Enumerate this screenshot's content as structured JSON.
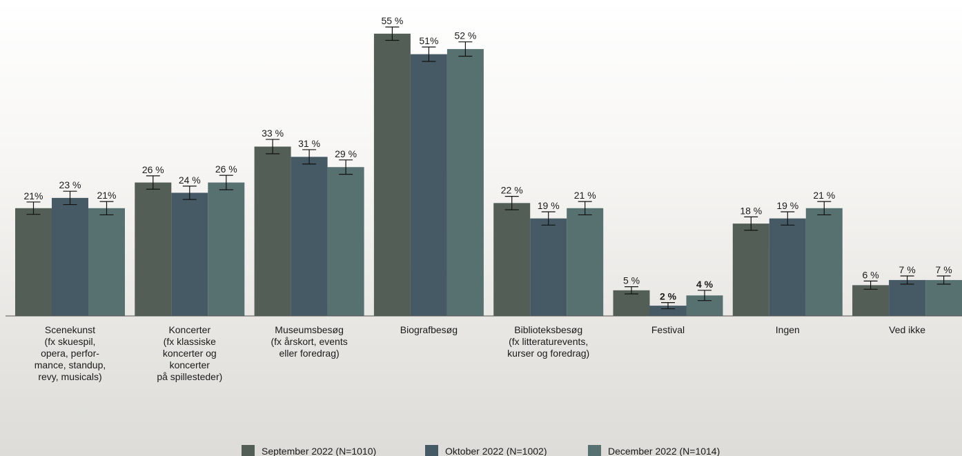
{
  "chart_data": {
    "type": "bar",
    "title": "",
    "xlabel": "",
    "ylabel": "",
    "ylim": [
      0,
      57
    ],
    "grid": false,
    "legend_position": "bottom-center",
    "colors": [
      "#535f56",
      "#465a65",
      "#56716f"
    ],
    "error_color": "#111111",
    "categories": [
      [
        "Scenekunst",
        "(fx skuespil,",
        "opera, perfor-",
        "mance, standup,",
        "revy, musicals)"
      ],
      [
        "Koncerter",
        "(fx klassiske",
        "koncerter og",
        "koncerter",
        "på spillesteder)"
      ],
      [
        "Museumsbesøg",
        "(fx årskort, events",
        "eller foredrag)"
      ],
      [
        "Biografbesøg"
      ],
      [
        "Biblioteksbesøg",
        "(fx litteraturevents,",
        "kurser og foredrag)"
      ],
      [
        "Festival"
      ],
      [
        "Ingen"
      ],
      [
        "Ved ikke"
      ]
    ],
    "series": [
      {
        "name": "September 2022 (N=1010)",
        "values": [
          21,
          26,
          33,
          55,
          22,
          5,
          18,
          6
        ],
        "labels": [
          "21%",
          "26 %",
          "33 %",
          "55 %",
          "22 %",
          "5 %",
          "18 %",
          "6 %"
        ],
        "errors": [
          1.2,
          1.3,
          1.4,
          1.3,
          1.3,
          0.7,
          1.3,
          0.8
        ],
        "bold": [
          false,
          false,
          false,
          false,
          false,
          false,
          false,
          false
        ]
      },
      {
        "name": "Oktober 2022 (N=1002)",
        "values": [
          23,
          24,
          31,
          51,
          19,
          2,
          19,
          7
        ],
        "labels": [
          "23 %",
          "24 %",
          "31 %",
          "51%",
          "19 %",
          "2 %",
          "19 %",
          "7 %"
        ],
        "errors": [
          1.3,
          1.3,
          1.4,
          1.4,
          1.3,
          0.6,
          1.3,
          0.8
        ],
        "bold": [
          false,
          false,
          false,
          false,
          false,
          true,
          false,
          false
        ]
      },
      {
        "name": "December 2022 (N=1014)",
        "values": [
          21,
          26,
          29,
          52,
          21,
          4,
          21,
          7
        ],
        "labels": [
          "21%",
          "26 %",
          "29 %",
          "52 %",
          "21 %",
          "4 %",
          "21 %",
          "7 %"
        ],
        "errors": [
          1.3,
          1.4,
          1.4,
          1.4,
          1.3,
          1.0,
          1.3,
          0.8
        ],
        "bold": [
          false,
          false,
          false,
          false,
          false,
          true,
          false,
          false
        ]
      }
    ]
  }
}
